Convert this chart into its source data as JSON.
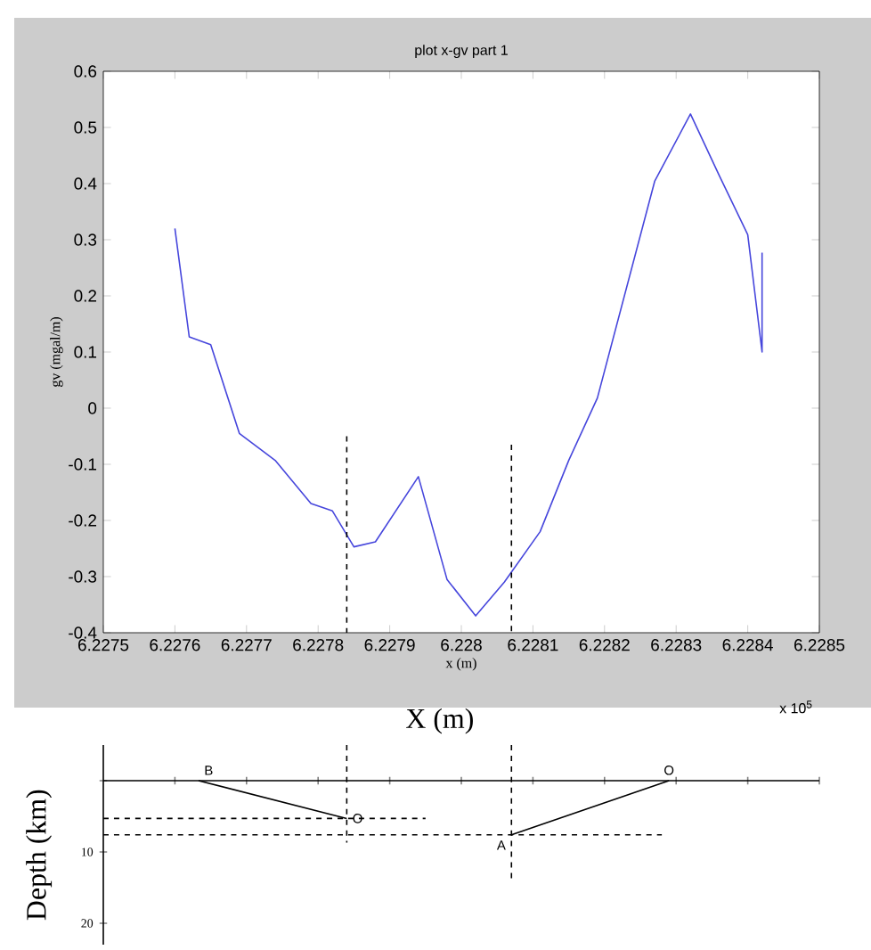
{
  "chart_data": [
    {
      "type": "line",
      "title": "plot x-gv part 1",
      "xlabel": "x (m)",
      "ylabel": "gv (mgal/m)",
      "xlim": [
        6.2275,
        6.2285
      ],
      "xticks": [
        6.2275,
        6.2276,
        6.2277,
        6.2278,
        6.2279,
        6.228,
        6.2281,
        6.2282,
        6.2283,
        6.2284,
        6.2285
      ],
      "ylim": [
        -0.4,
        0.6
      ],
      "yticks": [
        -0.4,
        -0.3,
        -0.2,
        -0.1,
        0,
        0.1,
        0.2,
        0.3,
        0.4,
        0.5,
        0.6
      ],
      "series": [
        {
          "color": "#4646dc",
          "x": [
            6.2276,
            6.22762,
            6.22765,
            6.22769,
            6.22774,
            6.22779,
            6.22782,
            6.22785,
            6.22788,
            6.22794,
            6.22798,
            6.22802,
            6.22806,
            6.22811,
            6.22815,
            6.22819,
            6.22827,
            6.22832,
            6.22836,
            6.2284,
            6.22842,
            6.22842
          ],
          "values": [
            0.32,
            0.127,
            0.113,
            -0.045,
            -0.093,
            -0.17,
            -0.183,
            -0.247,
            -0.238,
            -0.122,
            -0.305,
            -0.37,
            -0.31,
            -0.22,
            -0.093,
            0.018,
            0.404,
            0.524,
            0.415,
            0.309,
            0.1,
            0.277
          ]
        },
        {
          "color": "#000000",
          "line_style": "dashed",
          "x": [
            6.22784,
            6.22784
          ],
          "values": [
            -0.05,
            -0.4
          ]
        },
        {
          "color": "#000000",
          "line_style": "dashed",
          "x": [
            6.22807,
            6.22807
          ],
          "values": [
            -0.065,
            -0.4
          ]
        }
      ],
      "annotations": [
        "x 10$^{5}$"
      ]
    },
    {
      "type": "line",
      "xlabel": "X (m)",
      "ylabel": "Depth (km)",
      "tick_labels": "y",
      "xlim": [
        6.2275,
        6.2285
      ],
      "xticks": [
        6.2275,
        6.2276,
        6.2277,
        6.2278,
        6.2279,
        6.228,
        6.2281,
        6.2282,
        6.2283,
        6.2284,
        6.2285
      ],
      "ylim": [
        23,
        -5
      ],
      "yticks": [
        {
          "value": 0,
          "label": null
        },
        10,
        20
      ],
      "series": [
        {
          "color": "#000000",
          "x": [
            6.227633,
            6.22784
          ],
          "values": [
            0,
            5.3
          ]
        },
        {
          "color": "#000000",
          "x": [
            6.22829,
            6.22807
          ],
          "values": [
            0,
            7.6
          ]
        },
        {
          "color": "#000000",
          "line_style": "dashed",
          "x": [
            6.2275,
            6.22795
          ],
          "values": [
            5.3,
            5.3
          ]
        },
        {
          "color": "#000000",
          "line_style": "dashed",
          "x": [
            6.2275,
            6.22828
          ],
          "values": [
            7.6,
            7.6
          ]
        },
        {
          "color": "#000000",
          "line_style": "dashed",
          "x": [
            6.22784,
            6.22784
          ],
          "values": [
            -5,
            8.7
          ]
        },
        {
          "color": "#000000",
          "line_style": "dashed",
          "x": [
            6.22807,
            6.22807
          ],
          "values": [
            -5,
            13.7
          ]
        }
      ],
      "annotations": [
        {
          "text": "B",
          "x": 6.227633,
          "y": 0
        },
        {
          "text": "O",
          "x": 6.22784,
          "y": 5.3
        },
        {
          "text": "O",
          "x": 6.22829,
          "y": 0
        },
        {
          "text": "A",
          "x": 6.22807,
          "y": 7.6
        }
      ]
    }
  ]
}
